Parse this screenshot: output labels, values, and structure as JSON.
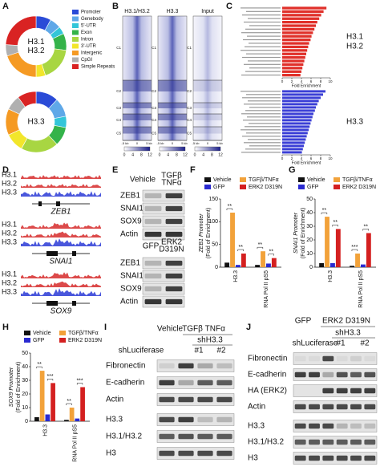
{
  "panel_labels": [
    "A",
    "B",
    "C",
    "D",
    "E",
    "F",
    "G",
    "H",
    "I",
    "J"
  ],
  "chart_data": [
    {
      "type": "pie",
      "center_label": [
        "H3.1",
        "H3.2"
      ],
      "categories": [
        "Promoter",
        "Genebody",
        "5'-UTR",
        "Exon",
        "Intron",
        "3'-UTR",
        "Intergenic",
        "CpGI",
        "Simple Repeats"
      ],
      "colors": [
        "#2a4bd7",
        "#5fa8e8",
        "#33c6d9",
        "#34b34a",
        "#a8d642",
        "#f2e62b",
        "#f59a23",
        "#b0b0b0",
        "#d92323"
      ],
      "values": [
        8,
        6,
        4,
        9,
        18,
        5,
        20,
        6,
        24
      ]
    },
    {
      "type": "pie",
      "center_label": [
        "H3.3"
      ],
      "values": [
        12,
        10,
        6,
        10,
        20,
        10,
        14,
        8,
        10
      ]
    },
    {
      "type": "hbar",
      "label": [
        "H3.1",
        "H3.2"
      ],
      "xlabel": "Fold Enrichment",
      "color": "#e0302a",
      "values": [
        9.2,
        8.6,
        8.1,
        7.7,
        7.3,
        7.0,
        6.7,
        6.4,
        6.1,
        5.9,
        5.6,
        5.4,
        5.2,
        5.0,
        4.8,
        4.6,
        4.4,
        4.2,
        4.0,
        3.8
      ],
      "xlim": [
        0,
        10
      ],
      "xticks": [
        0,
        2,
        4,
        6,
        8,
        10
      ]
    },
    {
      "type": "hbar",
      "label": [
        "H3.3"
      ],
      "xlabel": "Fold Enrichment",
      "color": "#3b3fd6",
      "values": [
        9.0,
        8.5,
        8.0,
        7.6,
        7.3,
        7.0,
        6.8,
        6.5,
        6.3,
        6.1,
        5.9,
        5.7,
        5.5,
        5.3,
        5.1,
        4.9,
        4.7,
        4.5,
        4.3,
        4.1
      ],
      "xlim": [
        0,
        10
      ],
      "xticks": [
        0,
        2,
        4,
        6,
        8,
        10
      ]
    },
    {
      "type": "bar",
      "ylabel": [
        "ZEB1 Promoter",
        "(Fold of Enrichment)"
      ],
      "categories": [
        "H3.3",
        "RNA Pol II pS5"
      ],
      "series": [
        {
          "name": "Vehicle",
          "color": "#111111",
          "values": [
            10,
            5
          ]
        },
        {
          "name": "TGFβ/TNFα",
          "color": "#f2a23a",
          "values": [
            120,
            35
          ]
        },
        {
          "name": "GFP",
          "color": "#2a2ad0",
          "values": [
            5,
            8
          ]
        },
        {
          "name": "ERK2 D319N",
          "color": "#d42020",
          "values": [
            30,
            20
          ]
        }
      ],
      "ylim": [
        0,
        150
      ],
      "yticks": [
        0,
        50,
        100,
        150
      ],
      "annotations": [
        [
          "**",
          "**"
        ],
        [
          "**",
          "**"
        ]
      ]
    },
    {
      "type": "bar",
      "ylabel": [
        "SNAI1 Promoter",
        "(Fold of Enrichment)"
      ],
      "categories": [
        "H3.3",
        "RNA Pol II pS5"
      ],
      "series": [
        {
          "name": "Vehicle",
          "color": "#111111",
          "values": [
            3,
            1
          ]
        },
        {
          "name": "TGFβ/TNFα",
          "color": "#f2a23a",
          "values": [
            37,
            10
          ]
        },
        {
          "name": "GFP",
          "color": "#2a2ad0",
          "values": [
            3,
            2
          ]
        },
        {
          "name": "ERK2 D319N",
          "color": "#d42020",
          "values": [
            28,
            25
          ]
        }
      ],
      "ylim": [
        0,
        50
      ],
      "yticks": [
        0,
        10,
        20,
        30,
        40,
        50
      ],
      "annotations": [
        [
          "**",
          "**"
        ],
        [
          "***",
          "**"
        ]
      ]
    },
    {
      "type": "bar",
      "ylabel": [
        "SOX9 Promoter",
        "(Fold of Enrichment)"
      ],
      "categories": [
        "H3.3",
        "RNA Pol II pS5"
      ],
      "series": [
        {
          "name": "Vehicle",
          "color": "#111111",
          "values": [
            3,
            1
          ]
        },
        {
          "name": "TGFβ/TNFα",
          "color": "#f2a23a",
          "values": [
            37,
            10
          ]
        },
        {
          "name": "GFP",
          "color": "#2a2ad0",
          "values": [
            5,
            2
          ]
        },
        {
          "name": "ERK2 D319N",
          "color": "#d42020",
          "values": [
            28,
            25
          ]
        }
      ],
      "ylim": [
        0,
        50
      ],
      "yticks": [
        0,
        10,
        20,
        30,
        40,
        50
      ],
      "annotations": [
        [
          "**",
          "***"
        ],
        [
          "**",
          "***"
        ]
      ]
    }
  ],
  "heatmap": {
    "columns": [
      "H3.1/H3.2",
      "H3.3",
      "Input"
    ],
    "clusters": [
      "C1",
      "C2",
      "C3",
      "C4",
      "C5"
    ],
    "xtick_labels": [
      "-5 kb",
      "0",
      "5 kb"
    ],
    "colorbar_ticks": [
      0,
      4,
      8,
      12
    ]
  },
  "tracks": {
    "rows": [
      "H3.1",
      "H3.2",
      "H3.3"
    ],
    "genes": [
      "ZEB1",
      "SNAI1",
      "SOX9"
    ]
  },
  "blot_E": {
    "top": {
      "lanes": [
        "Vehicle",
        [
          "TGFβ",
          "TNFα"
        ]
      ],
      "rows": [
        "ZEB1",
        "SNAI1",
        "SOX9",
        "Actin"
      ]
    },
    "bottom": {
      "lanes": [
        "GFP",
        [
          "ERK2",
          "D319N"
        ]
      ],
      "rows": [
        "ZEB1",
        "SNAI1",
        "SOX9",
        "Actin"
      ]
    }
  },
  "blot_I": {
    "treatment": [
      "Vehicle",
      "TGFβ TNFα"
    ],
    "knockdown": "shH3.3",
    "lanes": [
      "shLuciferase",
      "#1",
      "#2"
    ],
    "rows": [
      "Fibronectin",
      "E-cadherin",
      "Actin",
      "H3.3",
      "H3.1/H3.2",
      "H3"
    ]
  },
  "blot_J": {
    "treatment": [
      "GFP",
      "ERK2 D319N"
    ],
    "knockdown": "shH3.3",
    "lanes": [
      "shLuciferase",
      "#1",
      "#2"
    ],
    "rows": [
      "Fibronectin",
      "E-cadherin",
      "HA (ERK2)",
      "Actin",
      "H3.3",
      "H3.1/H3.2",
      "H3"
    ]
  }
}
